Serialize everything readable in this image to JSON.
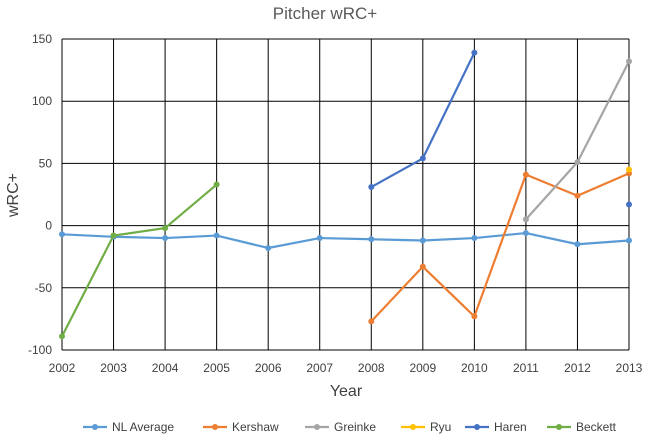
{
  "chart_data": {
    "type": "line",
    "title": "Pitcher wRC+",
    "xlabel": "Year",
    "ylabel": "wRC+",
    "x": [
      2002,
      2003,
      2004,
      2005,
      2006,
      2007,
      2008,
      2009,
      2010,
      2011,
      2012,
      2013
    ],
    "xticks": [
      "2002",
      "2003",
      "2004",
      "2005",
      "2006",
      "2007",
      "2008",
      "2009",
      "2010",
      "2011",
      "2012",
      "2013"
    ],
    "ylim": [
      -100,
      150
    ],
    "yticks": [
      "-100",
      "-50",
      "0",
      "50",
      "100",
      "150"
    ],
    "grid": true,
    "legend": "bottom",
    "series": [
      {
        "name": "NL Average",
        "color": "#5B9BD5",
        "values": [
          -7,
          -9,
          -10,
          -8,
          -18,
          -10,
          -11,
          -12,
          -10,
          -6,
          -15,
          -12
        ]
      },
      {
        "name": "Kershaw",
        "color": "#ED7D31",
        "values": [
          null,
          null,
          null,
          null,
          null,
          null,
          -77,
          -33,
          -73,
          41,
          24,
          42
        ]
      },
      {
        "name": "Greinke",
        "color": "#A5A5A5",
        "values": [
          null,
          null,
          null,
          null,
          null,
          null,
          null,
          null,
          null,
          5,
          51,
          132
        ]
      },
      {
        "name": "Ryu",
        "color": "#FFC000",
        "values": [
          null,
          null,
          null,
          null,
          null,
          null,
          null,
          null,
          null,
          null,
          null,
          45
        ]
      },
      {
        "name": "Haren",
        "color": "#4472C4",
        "values": [
          null,
          null,
          null,
          null,
          null,
          null,
          31,
          54,
          139,
          null,
          null,
          17
        ]
      },
      {
        "name": "Beckett",
        "color": "#70AD47",
        "values": [
          -89,
          -8,
          -2,
          33,
          null,
          null,
          null,
          null,
          null,
          null,
          null,
          null
        ]
      }
    ]
  }
}
